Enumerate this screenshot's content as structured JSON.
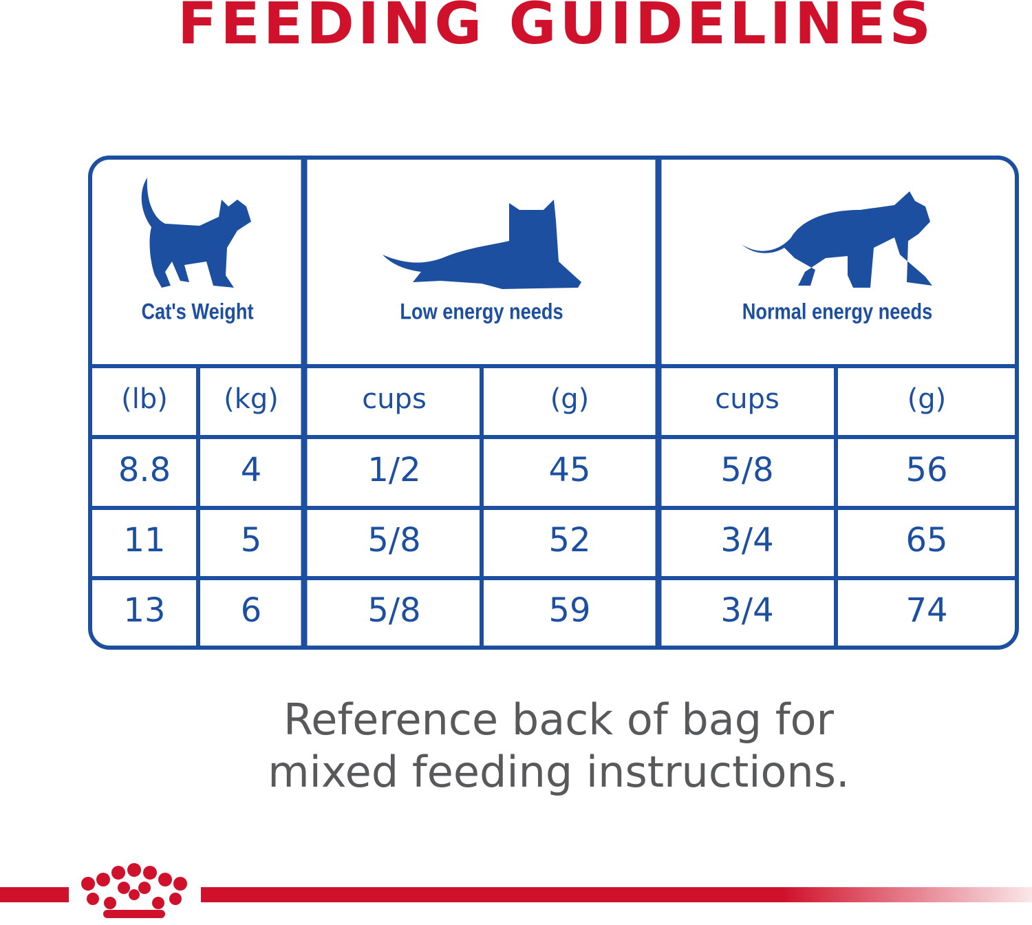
{
  "header": {
    "title": "FEEDING GUIDELINES"
  },
  "table": {
    "groups": [
      "Cat's Weight",
      "Low energy needs",
      "Normal energy needs"
    ],
    "subheaders": [
      "(lb)",
      "(kg)",
      "cups",
      "(g)",
      "cups",
      "(g)"
    ],
    "rows": [
      [
        "8.8",
        "4",
        "1/2",
        "45",
        "5/8",
        "56"
      ],
      [
        "11",
        "5",
        "5/8",
        "52",
        "3/4",
        "65"
      ],
      [
        "13",
        "6",
        "5/8",
        "59",
        "3/4",
        "74"
      ]
    ]
  },
  "footer": {
    "lines": [
      "Reference back of bag for",
      "mixed feeding instructions."
    ]
  }
}
